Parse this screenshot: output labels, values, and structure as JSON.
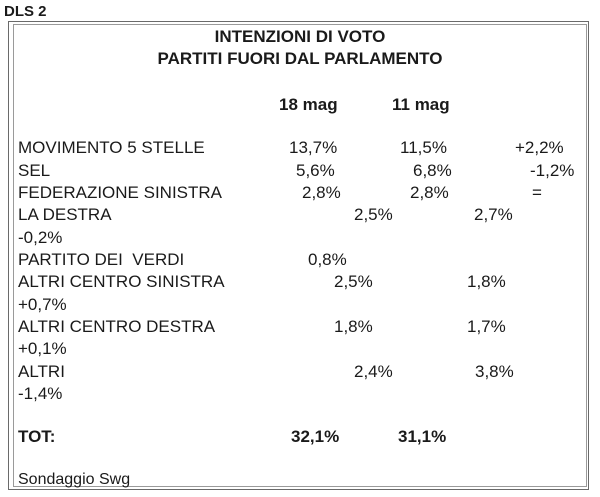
{
  "label": "DLS 2",
  "title_line1": "INTENZIONI DI VOTO",
  "title_line2": "PARTITI FUORI DAL PARLAMENTO",
  "col1": "18 mag",
  "col2": "11 mag",
  "rows": [
    {
      "name": "MOVIMENTO 5 STELLE",
      "v1": "13,7%",
      "v2": "11,5%",
      "diff": "+2,2%"
    },
    {
      "name": "SEL",
      "v1": "5,6%",
      "v2": "6,8%",
      "diff": "-1,2%"
    },
    {
      "name": "FEDERAZIONE SINISTRA",
      "v1": "2,8%",
      "v2": "2,8%",
      "diff": "="
    },
    {
      "name": "LA DESTRA",
      "v1": "2,5%",
      "v2": "2,7%",
      "diff": "-0,2%"
    },
    {
      "name": "PARTITO DEI  VERDI",
      "v1": "0,8%"
    },
    {
      "name": "ALTRI CENTRO SINISTRA",
      "v1": "2,5%",
      "v2": "1,8%",
      "diff": "+0,7%"
    },
    {
      "name": "ALTRI CENTRO DESTRA",
      "v1": "1,8%",
      "v2": "1,7%",
      "diff": "+0,1%"
    },
    {
      "name": "ALTRI",
      "v1": "2,4%",
      "v2": "3,8%",
      "diff": "-1,4%"
    }
  ],
  "total": {
    "label": "TOT:",
    "v1": "32,1%",
    "v2": "31,1%"
  },
  "source": "Sondaggio Swg"
}
